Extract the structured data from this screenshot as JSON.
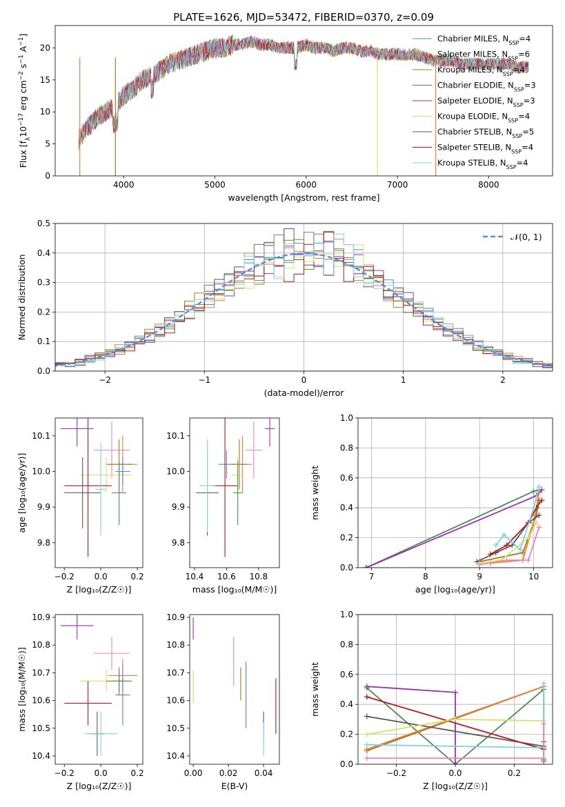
{
  "title": "PLATE=1626, MJD=53472, FIBERID=0370, z=0.09",
  "colors": {
    "Chabrier MILES": "#4a8fbd",
    "Salpeter MILES": "#e87d3e",
    "Kroupa MILES": "#a57a18",
    "Chabrier ELODIE": "#4c8a55",
    "Salpeter ELODIE": "#9b2fb5",
    "Kroupa ELODIE": "#d8e06a",
    "Chabrier STELIB": "#555555",
    "Salpeter STELIB": "#b21a1a",
    "Kroupa STELIB": "#7fd3e2",
    "pink": "#e888b8",
    "blue": "#5a7fd0",
    "normal": "#5a8fd8"
  },
  "chart_data": [
    {
      "id": "spectrum",
      "type": "line",
      "xlabel": "wavelength [Angstrom, rest frame]",
      "ylabel_parts": [
        "Flux [f",
        "λ",
        "10",
        "−17",
        " erg cm",
        "−2",
        " s",
        "−1",
        " A",
        "−1",
        "]"
      ],
      "xlim": [
        3250,
        8700
      ],
      "ylim": [
        0,
        23.5
      ],
      "xticks": [
        4000,
        5000,
        6000,
        7000,
        8000
      ],
      "yticks": [
        0,
        5,
        10,
        15,
        20
      ],
      "legend_position": "upper-right",
      "legend": [
        {
          "name": "Chabrier MILES, N",
          "sub": "SSP",
          "suffix": "=4"
        },
        {
          "name": "Salpeter MILES, N",
          "sub": "SSP",
          "suffix": "=6"
        },
        {
          "name": "Kroupa MILES, N",
          "sub": "SSP",
          "suffix": "=4"
        },
        {
          "name": "Chabrier ELODIE, N",
          "sub": "SSP",
          "suffix": "=3"
        },
        {
          "name": "Salpeter ELODIE, N",
          "sub": "SSP",
          "suffix": "=3"
        },
        {
          "name": "Kroupa ELODIE, N",
          "sub": "SSP",
          "suffix": "=4"
        },
        {
          "name": "Chabrier STELIB, N",
          "sub": "SSP",
          "suffix": "=5"
        },
        {
          "name": "Salpeter STELIB, N",
          "sub": "SSP",
          "suffix": "=4"
        },
        {
          "name": "Kroupa STELIB, N",
          "sub": "SSP",
          "suffix": "=4"
        }
      ],
      "envelope": {
        "x": [
          3500,
          3600,
          3700,
          3800,
          3900,
          4000,
          4100,
          4200,
          4300,
          4400,
          4500,
          4600,
          4700,
          4800,
          4900,
          5000,
          5100,
          5200,
          5300,
          5400,
          5500,
          5600,
          5700,
          5800,
          5900,
          6000,
          6100,
          6200,
          6300,
          6400,
          6500,
          6600,
          6700,
          6800,
          6900,
          7000,
          7100,
          7200,
          7300,
          7400,
          7500,
          7600,
          7700,
          7800,
          7900,
          8000,
          8100,
          8200,
          8300,
          8400
        ],
        "y": [
          5.5,
          7.5,
          9.0,
          10.0,
          11.0,
          12.5,
          13.5,
          15.0,
          15.5,
          16.5,
          17.5,
          18.0,
          18.5,
          19.0,
          19.5,
          20.0,
          20.0,
          20.5,
          20.5,
          21.0,
          20.5,
          20.5,
          20.0,
          20.0,
          20.0,
          20.5,
          20.0,
          20.0,
          19.5,
          20.0,
          20.0,
          19.5,
          19.5,
          19.0,
          19.0,
          19.0,
          19.0,
          19.0,
          18.5,
          18.0,
          18.0,
          18.0,
          17.5,
          17.5,
          17.5,
          17.5,
          17.5,
          17.5,
          17.0,
          17.0
        ]
      },
      "spikes": [
        {
          "x": 6780,
          "y": 0
        },
        {
          "x": 7420,
          "y": 0
        },
        {
          "x": 3910,
          "y": 0
        },
        {
          "x": 3520,
          "y": 0
        }
      ]
    },
    {
      "id": "residuals",
      "type": "histogram",
      "xlabel": "(data-model)/error",
      "ylabel": "Normed distribution",
      "xlim": [
        -2.5,
        2.5
      ],
      "ylim": [
        0,
        0.5
      ],
      "xticks": [
        -2,
        -1,
        0,
        1,
        2
      ],
      "yticks": [
        0.0,
        0.1,
        0.2,
        0.3,
        0.4,
        0.5
      ],
      "grid": true,
      "bin_width": 0.1,
      "legend_position": "upper-right",
      "legend_label": "𝒩(0, 1)",
      "base_model": "normal(0,1) with mean 0, sigma 1"
    },
    {
      "id": "age-vs-Z",
      "type": "errorbar",
      "xlabel": "Z [log₁₀(Z/Z☉)]",
      "ylabel": "age  [log₁₀(age/yr)]",
      "xlim": [
        -0.25,
        0.23
      ],
      "ylim": [
        9.73,
        10.15
      ],
      "xticks": [
        -0.2,
        0.0,
        0.2
      ],
      "yticks": [
        9.8,
        9.9,
        10.0,
        10.1
      ],
      "points": [
        {
          "series": "Salpeter ELODIE",
          "x": -0.13,
          "y": 10.12,
          "xerr": 0.09,
          "yerr": 0.05
        },
        {
          "series": "pink",
          "x": 0.06,
          "y": 10.06,
          "xerr": 0.1,
          "yerr": 0.08
        },
        {
          "series": "Salpeter MILES",
          "x": 0.12,
          "y": 10.02,
          "xerr": 0.08,
          "yerr": 0.08
        },
        {
          "series": "Kroupa MILES",
          "x": 0.1,
          "y": 10.02,
          "xerr": 0.07,
          "yerr": 0.07
        },
        {
          "series": "Kroupa ELODIE",
          "x": 0.03,
          "y": 9.99,
          "xerr": 0.14,
          "yerr": 0.05
        },
        {
          "series": "Salpeter STELIB",
          "x": -0.07,
          "y": 9.96,
          "xerr": 0.13,
          "yerr": 0.2
        },
        {
          "series": "Chabrier STELIB",
          "x": -0.1,
          "y": 9.94,
          "xerr": 0.1,
          "yerr": 0.1
        },
        {
          "series": "Chabrier ELODIE",
          "x": 0.1,
          "y": 9.94,
          "xerr": 0.04,
          "yerr": 0.09
        },
        {
          "series": "Kroupa STELIB",
          "x": 0.0,
          "y": 9.95,
          "xerr": 0.03,
          "yerr": 0.13
        },
        {
          "series": "blue",
          "x": 0.12,
          "y": 10.0,
          "xerr": 0.04,
          "yerr": 0.04
        }
      ]
    },
    {
      "id": "age-vs-mass",
      "type": "errorbar",
      "xlabel": "mass [log₁₀(M/M☉)]",
      "ylabel": "",
      "xlim": [
        10.37,
        10.93
      ],
      "ylim": [
        9.73,
        10.15
      ],
      "xticks": [
        10.4,
        10.6,
        10.8
      ],
      "yticks": [
        9.8,
        9.9,
        10.0,
        10.1
      ],
      "points": [
        {
          "series": "Salpeter ELODIE",
          "x": 10.87,
          "y": 10.12,
          "xerr": 0.03,
          "yerr": 0.05
        },
        {
          "series": "pink",
          "x": 10.77,
          "y": 10.06,
          "xerr": 0.05,
          "yerr": 0.08
        },
        {
          "series": "Salpeter MILES",
          "x": 10.7,
          "y": 10.02,
          "xerr": 0.06,
          "yerr": 0.08
        },
        {
          "series": "Kroupa MILES",
          "x": 10.68,
          "y": 10.02,
          "xerr": 0.05,
          "yerr": 0.07
        },
        {
          "series": "blue",
          "x": 10.6,
          "y": 10.02,
          "xerr": 0.05,
          "yerr": 0.04
        },
        {
          "series": "Kroupa ELODIE",
          "x": 10.67,
          "y": 9.99,
          "xerr": 0.04,
          "yerr": 0.05
        },
        {
          "series": "Salpeter STELIB",
          "x": 10.59,
          "y": 9.96,
          "xerr": 0.08,
          "yerr": 0.2
        },
        {
          "series": "Chabrier STELIB",
          "x": 10.48,
          "y": 9.94,
          "xerr": 0.07,
          "yerr": 0.12
        },
        {
          "series": "Chabrier ELODIE",
          "x": 10.67,
          "y": 9.94,
          "xerr": 0.03,
          "yerr": 0.09
        },
        {
          "series": "Kroupa STELIB",
          "x": 10.48,
          "y": 9.96,
          "xerr": 0.05,
          "yerr": 0.13
        }
      ]
    },
    {
      "id": "mw-vs-age",
      "type": "line",
      "xlabel": "age  [log₁₀(age/yr)]",
      "ylabel": "mass weight",
      "xlim": [
        6.75,
        10.35
      ],
      "ylim": [
        0,
        1.0
      ],
      "xticks": [
        7,
        8,
        9,
        10
      ],
      "yticks": [
        0.0,
        0.2,
        0.4,
        0.6,
        0.8,
        1.0
      ],
      "grid": true,
      "series": [
        {
          "name": "Chabrier ELODIE",
          "x": [
            6.9,
            10.0,
            10.1
          ],
          "y": [
            0.0,
            0.51,
            0.52
          ]
        },
        {
          "name": "Salpeter ELODIE",
          "x": [
            6.9,
            10.05,
            10.15
          ],
          "y": [
            0.0,
            0.48,
            0.52
          ]
        },
        {
          "name": "Kroupa MILES",
          "x": [
            9.0,
            9.8,
            10.05,
            10.1
          ],
          "y": [
            0.04,
            0.1,
            0.35,
            0.45
          ]
        },
        {
          "name": "Salpeter MILES",
          "x": [
            9.2,
            9.8,
            10.0,
            10.1
          ],
          "y": [
            0.03,
            0.05,
            0.3,
            0.5
          ]
        },
        {
          "name": "Chabrier STELIB",
          "x": [
            8.95,
            9.3,
            9.6,
            9.9,
            10.1
          ],
          "y": [
            0.04,
            0.1,
            0.15,
            0.3,
            0.35
          ]
        },
        {
          "name": "Salpeter STELIB",
          "x": [
            9.2,
            9.5,
            9.9,
            10.05,
            10.15
          ],
          "y": [
            0.09,
            0.15,
            0.3,
            0.4,
            0.45
          ]
        },
        {
          "name": "Kroupa ELODIE",
          "x": [
            9.0,
            9.4,
            9.9,
            10.05
          ],
          "y": [
            0.03,
            0.05,
            0.2,
            0.3
          ]
        },
        {
          "name": "Kroupa STELIB",
          "x": [
            9.3,
            9.45,
            9.75,
            10.0,
            10.1
          ],
          "y": [
            0.15,
            0.22,
            0.12,
            0.4,
            0.54
          ]
        },
        {
          "name": "pink",
          "x": [
            9.0,
            9.5,
            9.9,
            10.1
          ],
          "y": [
            0.02,
            0.05,
            0.05,
            0.27
          ]
        }
      ]
    },
    {
      "id": "mass-vs-Z",
      "type": "errorbar",
      "xlabel": "Z [log₁₀(Z/Z☉)]",
      "ylabel": "mass [log₁₀(M/M☉)]",
      "xlim": [
        -0.25,
        0.23
      ],
      "ylim": [
        10.37,
        10.91
      ],
      "xticks": [
        -0.2,
        0.0,
        0.2
      ],
      "yticks": [
        10.4,
        10.5,
        10.6,
        10.7,
        10.8,
        10.9
      ],
      "points": [
        {
          "series": "Salpeter ELODIE",
          "x": -0.13,
          "y": 10.87,
          "xerr": 0.09,
          "yerr": 0.05
        },
        {
          "series": "pink",
          "x": 0.06,
          "y": 10.77,
          "xerr": 0.1,
          "yerr": 0.06
        },
        {
          "series": "Kroupa ELODIE",
          "x": 0.03,
          "y": 10.67,
          "xerr": 0.14,
          "yerr": 0.04
        },
        {
          "series": "Kroupa MILES",
          "x": 0.1,
          "y": 10.67,
          "xerr": 0.07,
          "yerr": 0.05
        },
        {
          "series": "Salpeter MILES",
          "x": 0.12,
          "y": 10.69,
          "xerr": 0.08,
          "yerr": 0.06
        },
        {
          "series": "blue",
          "x": 0.12,
          "y": 10.62,
          "xerr": 0.04,
          "yerr": 0.11
        },
        {
          "series": "Salpeter STELIB",
          "x": -0.07,
          "y": 10.59,
          "xerr": 0.13,
          "yerr": 0.08
        },
        {
          "series": "Chabrier ELODIE",
          "x": 0.1,
          "y": 10.67,
          "xerr": 0.04,
          "yerr": 0.04
        },
        {
          "series": "Chabrier STELIB",
          "x": -0.02,
          "y": 10.48,
          "xerr": 0.04,
          "yerr": 0.08
        },
        {
          "series": "Kroupa STELIB",
          "x": 0.0,
          "y": 10.48,
          "xerr": 0.09,
          "yerr": 0.08
        }
      ]
    },
    {
      "id": "mass-vs-ebv",
      "type": "errorbar",
      "xlabel": "E(B-V)",
      "ylabel": "",
      "xlim": [
        -0.002,
        0.049
      ],
      "ylim": [
        10.37,
        10.91
      ],
      "xticks": [
        0.0,
        0.02,
        0.04
      ],
      "yticks": [
        10.4,
        10.5,
        10.6,
        10.7,
        10.8,
        10.9
      ],
      "points": [
        {
          "series": "Salpeter ELODIE",
          "x": 0.0,
          "y": 10.86,
          "xerr": 0,
          "yerr": 0.04
        },
        {
          "series": "Kroupa ELODIE",
          "x": 0.0,
          "y": 10.65,
          "xerr": 0,
          "yerr": 0.06
        },
        {
          "series": "pink",
          "x": 0.023,
          "y": 10.74,
          "xerr": 0,
          "yerr": 0.09
        },
        {
          "series": "Kroupa MILES",
          "x": 0.027,
          "y": 10.66,
          "xerr": 0,
          "yerr": 0.06
        },
        {
          "series": "blue",
          "x": 0.03,
          "y": 10.62,
          "xerr": 0,
          "yerr": 0.12
        },
        {
          "series": "Chabrier STELIB",
          "x": 0.04,
          "y": 10.5,
          "xerr": 0,
          "yerr": 0.06
        },
        {
          "series": "Kroupa STELIB",
          "x": 0.04,
          "y": 10.46,
          "xerr": 0,
          "yerr": 0.06
        },
        {
          "series": "Salpeter STELIB",
          "x": 0.047,
          "y": 10.58,
          "xerr": 0,
          "yerr": 0.1
        }
      ]
    },
    {
      "id": "mw-vs-Z",
      "type": "line",
      "xlabel": "Z [log₁₀(Z/Z☉)]",
      "ylabel": "mass weight",
      "xlim": [
        -0.33,
        0.33
      ],
      "ylim": [
        0,
        1.0
      ],
      "xticks": [
        -0.2,
        0.0,
        0.2
      ],
      "yticks": [
        0.0,
        0.2,
        0.4,
        0.6,
        0.8,
        1.0
      ],
      "grid": true,
      "series": [
        {
          "name": "Chabrier ELODIE",
          "x": [
            -0.3,
            0.0,
            0.3,
            0.3
          ],
          "y": [
            0.51,
            0.0,
            0.5,
            0.02
          ]
        },
        {
          "name": "Salpeter ELODIE",
          "x": [
            -0.3,
            0.0,
            0.0
          ],
          "y": [
            0.52,
            0.48,
            0.0
          ]
        },
        {
          "name": "Kroupa MILES",
          "x": [
            -0.3,
            0.3,
            0.3
          ],
          "y": [
            0.09,
            0.52,
            0.03
          ]
        },
        {
          "name": "Salpeter MILES",
          "x": [
            -0.3,
            0.3
          ],
          "y": [
            0.1,
            0.52
          ]
        },
        {
          "name": "Chabrier STELIB",
          "x": [
            -0.3,
            0.3,
            0.3
          ],
          "y": [
            0.32,
            0.12,
            0.15
          ]
        },
        {
          "name": "Salpeter STELIB",
          "x": [
            -0.3,
            0.3
          ],
          "y": [
            0.45,
            0.1
          ]
        },
        {
          "name": "Kroupa ELODIE",
          "x": [
            -0.3,
            0.0,
            0.3
          ],
          "y": [
            0.2,
            0.3,
            0.29
          ]
        },
        {
          "name": "Kroupa STELIB",
          "x": [
            -0.3,
            0.3,
            0.3
          ],
          "y": [
            0.13,
            0.11,
            0.54
          ]
        },
        {
          "name": "pink",
          "x": [
            -0.3,
            0.3,
            0.3
          ],
          "y": [
            0.04,
            0.04,
            0.27
          ]
        }
      ]
    }
  ]
}
